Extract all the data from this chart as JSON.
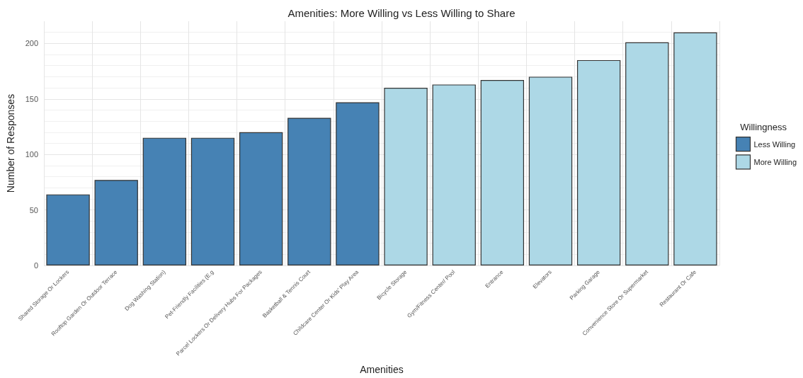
{
  "chart_data": {
    "type": "bar",
    "title": "Amenities: More Willing vs Less Willing to Share",
    "xlabel": "Amenities",
    "ylabel": "Number of Responses",
    "legend_title": "Willingness",
    "categories": [
      "Shared Storage Or Lockers",
      "Rooftop Garden Or Outdoor Terrace",
      "Dog Washing Station)",
      "Pet-Friendly Facilities (E.g",
      "Parcel Lockers Or Delivery Hubs For Packages",
      "Basketball & Tennis Court",
      "Childcare Center Or Kids' Play Area",
      "Bicycle Storage",
      "Gym/Fitness Center/ Pool",
      "Entrance",
      "Elevators",
      "Parking Garage",
      "Convenience Store Or Supermarket",
      "Restaurant Or Cafe"
    ],
    "series": [
      {
        "name": "Less Willing",
        "color": "#4682b4",
        "values": [
          64,
          77,
          115,
          115,
          120,
          133,
          147,
          null,
          null,
          null,
          null,
          null,
          null,
          null
        ]
      },
      {
        "name": "More Willing",
        "color": "#add8e6",
        "values": [
          null,
          null,
          null,
          null,
          null,
          null,
          null,
          160,
          163,
          167,
          170,
          185,
          201,
          210
        ]
      }
    ],
    "stacked": true,
    "ylim": [
      0,
      220
    ],
    "yticks": [
      0,
      50,
      100,
      150,
      200
    ],
    "grid": true,
    "legend": "right"
  }
}
